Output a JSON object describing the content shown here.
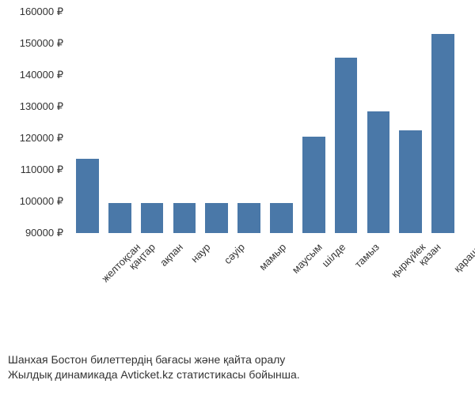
{
  "chart": {
    "type": "bar",
    "categories": [
      "желтоқсан",
      "қаңтар",
      "ақпан",
      "наур",
      "сәуір",
      "мамыр",
      "маусым",
      "шілде",
      "тамыз",
      "қыркүйек",
      "қазан",
      "қараша"
    ],
    "values": [
      113500,
      99500,
      99500,
      99500,
      99500,
      99500,
      99500,
      120500,
      145500,
      128500,
      122500,
      153000
    ],
    "bar_color": "#4a78a8",
    "background_color": "#ffffff",
    "ylim": [
      90000,
      160000
    ],
    "ytick_step": 10000,
    "yticks": [
      90000,
      100000,
      110000,
      120000,
      130000,
      140000,
      150000,
      160000
    ],
    "ytick_labels": [
      "90000 ₽",
      "100000 ₽",
      "110000 ₽",
      "120000 ₽",
      "130000 ₽",
      "140000 ₽",
      "150000 ₽",
      "160000 ₽"
    ],
    "bar_width_ratio": 0.7,
    "label_fontsize": 13,
    "text_color": "#333333",
    "x_label_rotation": -45
  },
  "caption": {
    "line1": "Шанхая Бостон билеттердің бағасы және қайта оралу",
    "line2": "Жылдық динамикада Avticket.kz статистикасы бойынша."
  }
}
